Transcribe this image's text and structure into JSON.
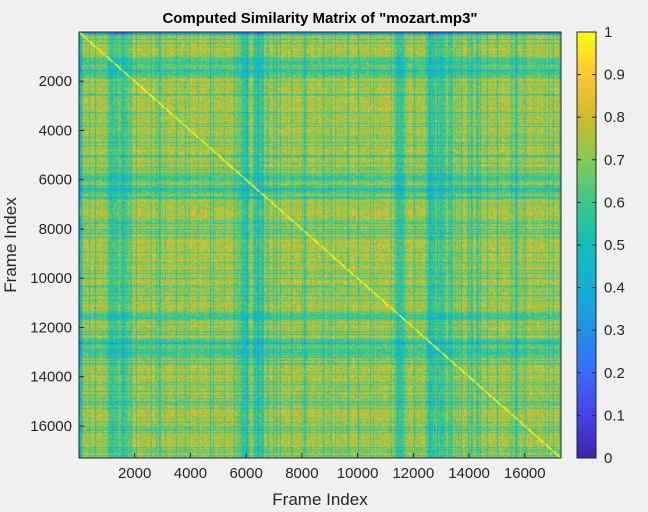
{
  "chart_data": {
    "type": "heatmap",
    "title": "Computed Similarity Matrix of \"mozart.mp3\"",
    "xlabel": "Frame Index",
    "ylabel": "Frame Index",
    "xlim": [
      1,
      17300
    ],
    "ylim": [
      1,
      17300
    ],
    "y_direction": "reversed",
    "x_ticks": [
      2000,
      4000,
      6000,
      8000,
      10000,
      12000,
      14000,
      16000
    ],
    "y_ticks": [
      2000,
      4000,
      6000,
      8000,
      10000,
      12000,
      14000,
      16000
    ],
    "colorbar": {
      "range": [
        0,
        1
      ],
      "ticks": [
        "0",
        "0.1",
        "0.2",
        "0.3",
        "0.4",
        "0.5",
        "0.6",
        "0.7",
        "0.8",
        "0.9",
        "1"
      ],
      "colormap": "parula"
    },
    "diagonal_value": 1,
    "typical_off_diagonal_range": [
      0.5,
      0.9
    ],
    "low_similarity_bands_frame_index": [
      1200,
      1600,
      5900,
      6400,
      11500,
      12600,
      13000
    ],
    "grid": false,
    "colors": {
      "low": "#3e26a8",
      "mid": "#12b2bc",
      "high": "#f9fb0e"
    }
  }
}
